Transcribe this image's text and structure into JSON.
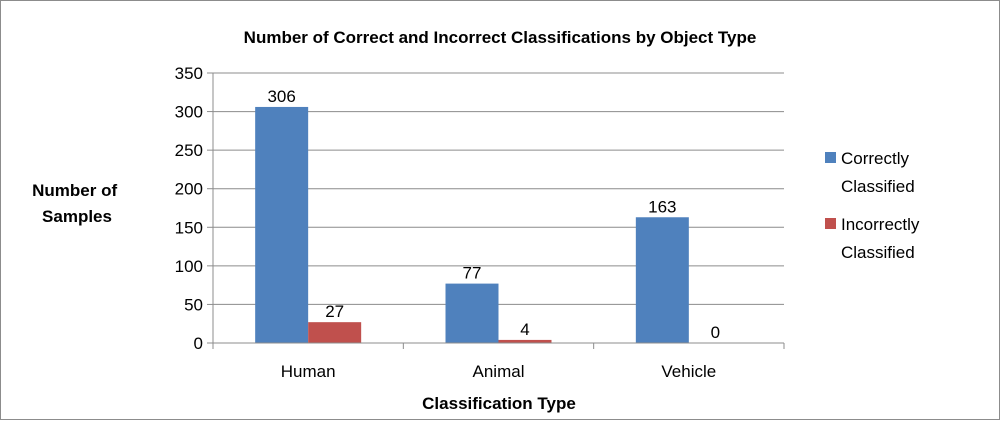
{
  "chart_data": {
    "type": "bar",
    "title": "Number of Correct and Incorrect Classifications by Object Type",
    "xlabel": "Classification Type",
    "ylabel": [
      "Number of",
      "Samples"
    ],
    "categories": [
      "Human",
      "Animal",
      "Vehicle"
    ],
    "series": [
      {
        "name": [
          "Correctly",
          "Classified"
        ],
        "values": [
          306,
          77,
          163
        ],
        "color": "#4f81bd"
      },
      {
        "name": [
          "Incorrectly",
          "Classified"
        ],
        "values": [
          27,
          4,
          0
        ],
        "color": "#c0504d"
      }
    ],
    "ylim": [
      0,
      350
    ],
    "yticks": [
      0,
      50,
      100,
      150,
      200,
      250,
      300,
      350
    ],
    "grid": true,
    "legend_position": "right"
  }
}
